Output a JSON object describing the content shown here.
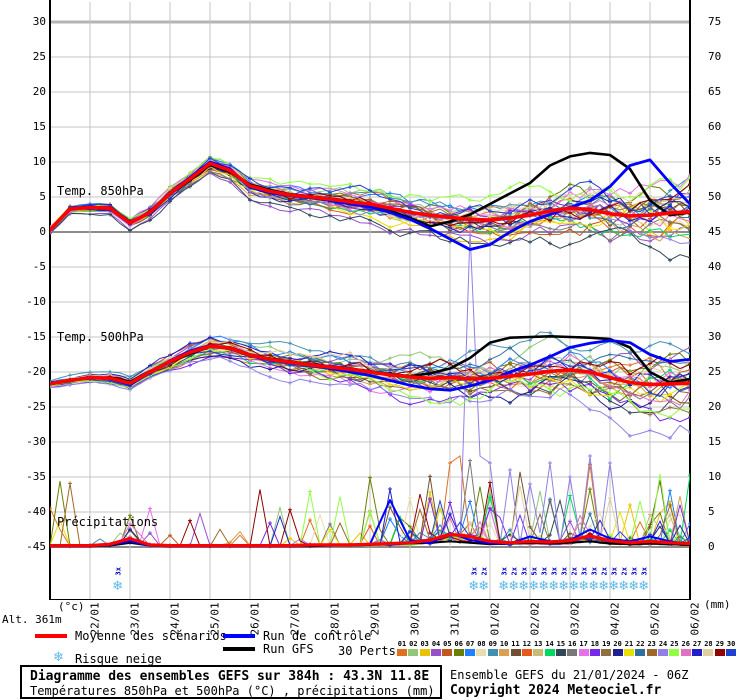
{
  "colors": {
    "mean": "#ff0000",
    "control": "#0000ff",
    "gfs": "#000000",
    "snowflake": "#5bb8e8",
    "snow_count": "#0000bb",
    "grid": "#c4c4c4",
    "grid_major": "#8c8c8c",
    "grid_top": "#b4b4b4"
  },
  "alt_label": "Alt. 361m",
  "legend": {
    "mean_label": "Moyenne des scénarios",
    "control_label": "Run de contrôle",
    "gfs_label": "Run GFS",
    "perts_label": "30 Perts.",
    "snow_label": "Risque neige"
  },
  "title_box": {
    "line1": "Diagramme des ensembles GEFS sur 384h : 43.3N 11.8E",
    "line2": "Températures 850hPa et 500hPa (°C) , précipitations (mm)"
  },
  "source": {
    "line1": "Ensemble GEFS du 21/01/2024 - 06Z",
    "line2": "Copyright 2024 Meteociel.fr"
  },
  "member_numbers": [
    "01",
    "02",
    "03",
    "04",
    "05",
    "06",
    "07",
    "08",
    "09",
    "10",
    "11",
    "12",
    "13",
    "14",
    "15",
    "16",
    "17",
    "18",
    "19",
    "20",
    "21",
    "22",
    "23",
    "24",
    "25",
    "26",
    "27",
    "28",
    "29",
    "30"
  ],
  "snow_markers": [
    {
      "day": 1.73,
      "label": "3x"
    },
    {
      "day": 10.63,
      "label": "3x"
    },
    {
      "day": 10.88,
      "label": "2x"
    },
    {
      "day": 11.38,
      "label": "3x"
    },
    {
      "day": 11.63,
      "label": "2x"
    },
    {
      "day": 11.88,
      "label": "3x"
    },
    {
      "day": 12.13,
      "label": "5x"
    },
    {
      "day": 12.38,
      "label": "3x"
    },
    {
      "day": 12.63,
      "label": "3x"
    },
    {
      "day": 12.88,
      "label": "3x"
    },
    {
      "day": 13.13,
      "label": "2x"
    },
    {
      "day": 13.38,
      "label": "3x"
    },
    {
      "day": 13.63,
      "label": "3x"
    },
    {
      "day": 13.88,
      "label": "2x"
    },
    {
      "day": 14.13,
      "label": "3x"
    },
    {
      "day": 14.38,
      "label": "2x"
    },
    {
      "day": 14.63,
      "label": "3x"
    },
    {
      "day": 14.88,
      "label": "3x"
    }
  ],
  "chart_data": {
    "type": "line",
    "x": {
      "start_date": "21/01",
      "step_days": 0.5,
      "total_days": 16,
      "tick_labels": [
        "22/01",
        "23/01",
        "24/01",
        "25/01",
        "26/01",
        "27/01",
        "28/01",
        "29/01",
        "30/01",
        "31/01",
        "01/02",
        "02/02",
        "03/02",
        "04/02",
        "05/02",
        "06/02"
      ]
    },
    "left_axis": {
      "unit": "(°c)",
      "range": [
        -45,
        30
      ],
      "ticks": [
        30,
        25,
        20,
        15,
        10,
        5,
        0,
        -5,
        -10,
        -15,
        -20,
        -25,
        -30,
        -35,
        -40,
        -45
      ]
    },
    "right_axis": {
      "unit": "(mm)",
      "range": [
        0,
        75
      ],
      "ticks": [
        75,
        70,
        65,
        60,
        55,
        50,
        45,
        40,
        35,
        30,
        25,
        20,
        15,
        10,
        5,
        0
      ]
    },
    "panels": [
      {
        "id": "t850",
        "label": "Temp. 850hPa",
        "axis": "left",
        "series": [
          {
            "name": "mean",
            "values": [
              0.3,
              3.3,
              3.5,
              3.4,
              1.3,
              2.8,
              5.5,
              7.6,
              9.8,
              8.8,
              6.6,
              5.8,
              5.3,
              5.0,
              4.7,
              4.3,
              4.0,
              3.4,
              2.8,
              2.4,
              2.1,
              1.8,
              1.7,
              2.0,
              2.4,
              3.0,
              3.4,
              3.2,
              2.6,
              2.3,
              2.4,
              2.7,
              2.9
            ]
          },
          {
            "name": "control",
            "values": [
              0.3,
              3.2,
              3.6,
              3.3,
              1.2,
              2.9,
              5.6,
              7.8,
              10.0,
              9.0,
              6.4,
              5.6,
              5.2,
              4.9,
              4.5,
              4.0,
              3.6,
              2.8,
              1.8,
              0.5,
              -1.0,
              -2.5,
              -1.8,
              0.0,
              1.5,
              2.5,
              3.5,
              4.5,
              6.5,
              9.5,
              10.3,
              7.0,
              4.0
            ]
          },
          {
            "name": "gfs",
            "values": [
              0.3,
              3.4,
              3.5,
              3.5,
              1.4,
              2.7,
              5.4,
              7.4,
              9.6,
              8.6,
              6.8,
              6.0,
              5.4,
              5.1,
              4.8,
              4.4,
              3.8,
              3.0,
              2.0,
              0.8,
              1.5,
              2.5,
              4.0,
              5.5,
              7.0,
              9.5,
              10.8,
              11.3,
              11.0,
              9.0,
              4.5,
              2.4,
              2.8
            ]
          }
        ]
      },
      {
        "id": "t500",
        "label": "Temp. 500hPa",
        "axis": "left",
        "series": [
          {
            "name": "mean",
            "values": [
              -21.7,
              -21.2,
              -20.8,
              -20.9,
              -21.6,
              -20.0,
              -18.5,
              -17.2,
              -16.3,
              -16.6,
              -17.6,
              -18.2,
              -18.6,
              -19.0,
              -19.3,
              -19.6,
              -20.0,
              -20.4,
              -20.7,
              -20.9,
              -20.8,
              -21.0,
              -20.9,
              -20.6,
              -20.3,
              -19.9,
              -19.7,
              -20.0,
              -20.8,
              -21.5,
              -21.8,
              -21.7,
              -21.6
            ]
          },
          {
            "name": "control",
            "values": [
              -21.7,
              -21.3,
              -20.7,
              -21.0,
              -21.8,
              -20.1,
              -18.4,
              -17.0,
              -16.2,
              -16.7,
              -17.7,
              -18.3,
              -18.7,
              -19.1,
              -19.5,
              -20.0,
              -20.5,
              -21.2,
              -21.9,
              -22.4,
              -22.6,
              -22.0,
              -21.2,
              -20.0,
              -19.0,
              -17.8,
              -16.5,
              -15.9,
              -15.5,
              -15.8,
              -17.5,
              -18.5,
              -18.2
            ]
          },
          {
            "name": "gfs",
            "values": [
              -21.7,
              -21.1,
              -20.9,
              -20.8,
              -21.4,
              -19.9,
              -18.6,
              -17.4,
              -16.4,
              -16.5,
              -17.5,
              -18.1,
              -18.5,
              -18.9,
              -19.2,
              -19.5,
              -19.9,
              -20.3,
              -20.6,
              -20.2,
              -19.5,
              -18.0,
              -15.8,
              -15.1,
              -15.0,
              -14.9,
              -15.0,
              -15.1,
              -15.3,
              -16.5,
              -20.0,
              -21.5,
              -21.0
            ]
          }
        ]
      },
      {
        "id": "precip",
        "label": "Précipitations",
        "axis": "right",
        "series": [
          {
            "name": "mean",
            "values": [
              0.2,
              0.2,
              0.2,
              0.4,
              1.2,
              0.3,
              0.2,
              0.2,
              0.2,
              0.2,
              0.2,
              0.2,
              0.2,
              0.3,
              0.3,
              0.3,
              0.4,
              0.5,
              0.6,
              1.0,
              1.8,
              1.5,
              0.8,
              0.6,
              0.8,
              0.7,
              0.9,
              1.6,
              0.9,
              0.6,
              0.8,
              0.6,
              0.5
            ]
          },
          {
            "name": "control",
            "values": [
              0.1,
              0.1,
              0.1,
              0.3,
              0.8,
              0.2,
              0.1,
              0.1,
              0.1,
              0.1,
              0.1,
              0.1,
              0.1,
              0.2,
              0.2,
              0.3,
              0.4,
              6.7,
              1.0,
              0.5,
              2.0,
              1.0,
              0.5,
              0.5,
              1.5,
              0.8,
              1.0,
              2.5,
              1.2,
              0.8,
              1.5,
              0.8,
              0.4
            ]
          },
          {
            "name": "gfs",
            "values": [
              0.1,
              0.1,
              0.1,
              0.2,
              0.6,
              0.2,
              0.1,
              0.1,
              0.1,
              0.1,
              0.1,
              0.1,
              0.1,
              0.1,
              0.2,
              0.2,
              0.3,
              0.4,
              0.5,
              0.6,
              0.8,
              0.6,
              0.4,
              0.5,
              0.6,
              0.5,
              0.6,
              0.8,
              0.5,
              0.4,
              0.5,
              0.4,
              0.3
            ]
          }
        ]
      }
    ],
    "ensemble": {
      "count": 30,
      "colors": [
        "#e07020",
        "#90c878",
        "#e8c400",
        "#9850c8",
        "#c05820",
        "#6a8000",
        "#2080ff",
        "#e8dcb0",
        "#4090b0",
        "#d8a050",
        "#705030",
        "#e85818",
        "#c8bc78",
        "#00d860",
        "#304858",
        "#787878",
        "#e870e8",
        "#7828e8",
        "#907040",
        "#202090",
        "#e8e000",
        "#3070a0",
        "#a06828",
        "#9080e8",
        "#90ff40",
        "#e070c0",
        "#2020c8",
        "#e0d0a0",
        "#900000",
        "#2040d0"
      ],
      "sigma_850": {
        "base": 0.35,
        "growth": 3.1,
        "pow": 1.3
      },
      "sigma_500": {
        "base": 0.35,
        "growth": 3.4,
        "pow": 1.2
      },
      "bias_850": {
        "3": -1.8,
        "14": -2.0,
        "16": 1.6,
        "24": 1.4
      },
      "bias_500": {
        "8": 1.5,
        "17": -1.8,
        "23": -1.5
      },
      "forced_precip": [
        {
          "m": 25,
          "day": 2.0,
          "v": 3.3
        },
        {
          "m": 18,
          "day": 2.0,
          "v": 2.4
        },
        {
          "m": 10,
          "day": 8.6,
          "v": 5.7
        },
        {
          "m": 6,
          "day": 8.4,
          "v": 4.0
        },
        {
          "m": 0,
          "day": 10.0,
          "v": 12.0
        },
        {
          "m": 0,
          "day": 10.15,
          "v": 14.5
        },
        {
          "m": 0,
          "day": 10.3,
          "v": 13.0
        },
        {
          "m": 0,
          "day": 10.45,
          "v": 1.0
        },
        {
          "m": 23,
          "day": 10.35,
          "v": 0.5
        },
        {
          "m": 23,
          "day": 10.5,
          "v": 45.0
        },
        {
          "m": 23,
          "day": 10.75,
          "v": 13.0
        },
        {
          "m": 23,
          "day": 11.0,
          "v": 12.0
        },
        {
          "m": 23,
          "day": 11.5,
          "v": 11.0
        },
        {
          "m": 23,
          "day": 12.0,
          "v": 9.0
        },
        {
          "m": 23,
          "day": 12.5,
          "v": 12.0
        },
        {
          "m": 23,
          "day": 13.0,
          "v": 10.0
        },
        {
          "m": 23,
          "day": 13.5,
          "v": 13.0
        },
        {
          "m": 23,
          "day": 14.0,
          "v": 12.0
        },
        {
          "m": 6,
          "day": 10.55,
          "v": 6.5
        },
        {
          "m": 1,
          "day": 11.1,
          "v": 8.0
        },
        {
          "m": 1,
          "day": 12.3,
          "v": 8.0
        },
        {
          "m": 20,
          "day": 14.2,
          "v": 5.0
        },
        {
          "m": 22,
          "day": 15.4,
          "v": 6.0
        },
        {
          "m": 10,
          "day": 15.35,
          "v": 9.5
        },
        {
          "m": 2,
          "day": 14.6,
          "v": 6.0
        },
        {
          "m": 2,
          "day": 15.6,
          "v": 6.5
        }
      ]
    }
  }
}
